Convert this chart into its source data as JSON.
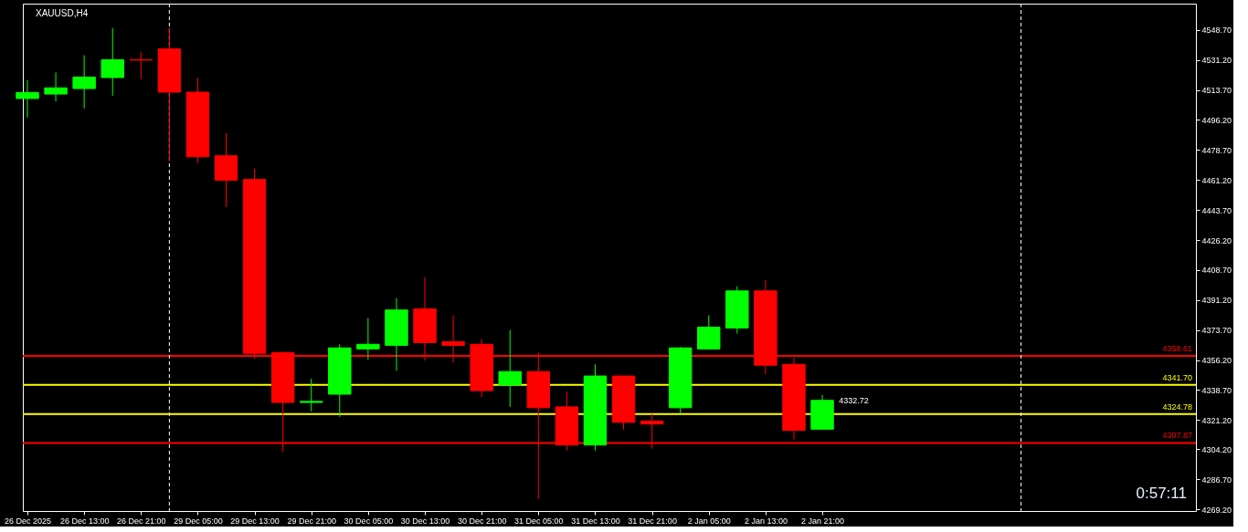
{
  "chart_data": {
    "type": "candlestick",
    "title": "XAUUSD,H4",
    "categories": [
      "26 Dec 2025",
      null,
      "26 Dec 13:00",
      null,
      "26 Dec 21:00",
      null,
      "29 Dec 05:00",
      null,
      "29 Dec 13:00",
      null,
      "29 Dec 21:00",
      null,
      "30 Dec 05:00",
      null,
      "30 Dec 13:00",
      null,
      "30 Dec 21:00",
      null,
      "31 Dec 05:00",
      null,
      "31 Dec 13:00",
      null,
      "31 Dec 21:00",
      null,
      "2 Jan 05:00",
      null,
      "2 Jan 13:00",
      null,
      "2 Jan 21:00",
      null,
      null,
      null,
      null,
      null,
      null,
      null,
      null,
      null,
      null,
      null,
      null,
      null
    ],
    "ohlc": [
      [
        4508.7,
        4519.5,
        4497.6,
        4512.2
      ],
      [
        4511.3,
        4523.9,
        4507.1,
        4514.9
      ],
      [
        4514.5,
        4533.9,
        4502.9,
        4521.2
      ],
      [
        4520.9,
        4549.8,
        4510.3,
        4531.3
      ],
      [
        4531.3,
        4536.0,
        4519.8,
        4531.1
      ],
      [
        4537.6,
        4549.8,
        4472.2,
        4512.4
      ],
      [
        4512.4,
        4520.7,
        4471.0,
        4474.7
      ],
      [
        4475.3,
        4488.5,
        4445.3,
        4461.0
      ],
      [
        4461.5,
        4467.9,
        4356.9,
        4360.1
      ],
      [
        4360.6,
        4361.1,
        4302.6,
        4331.5
      ],
      [
        4331.5,
        4345.3,
        4326.3,
        4332.1
      ],
      [
        4336.3,
        4365.4,
        4323.1,
        4363.3
      ],
      [
        4362.7,
        4380.7,
        4356.4,
        4365.4
      ],
      [
        4364.8,
        4392.3,
        4350.0,
        4385.4
      ],
      [
        4386.0,
        4404.5,
        4355.9,
        4366.4
      ],
      [
        4366.9,
        4382.3,
        4354.8,
        4364.8
      ],
      [
        4365.4,
        4368.5,
        4334.7,
        4338.4
      ],
      [
        4341.6,
        4373.8,
        4328.9,
        4349.5
      ],
      [
        4349.5,
        4360.6,
        4275.2,
        4328.4
      ],
      [
        4328.9,
        4337.9,
        4303.5,
        4306.7
      ],
      [
        4306.7,
        4353.7,
        4303.5,
        4346.9
      ],
      [
        4346.9,
        4346.9,
        4315.7,
        4319.9
      ],
      [
        4320.6,
        4324.8,
        4304.6,
        4318.9
      ],
      [
        4328.4,
        4363.8,
        4324.8,
        4363.3
      ],
      [
        4362.7,
        4382.3,
        4362.2,
        4375.4
      ],
      [
        4374.9,
        4399.2,
        4371.7,
        4396.5
      ],
      [
        4396.5,
        4402.9,
        4347.9,
        4353.2
      ],
      [
        4353.7,
        4357.4,
        4309.9,
        4315.2
      ],
      [
        4315.9,
        4335.8,
        4315.9,
        4332.72
      ],
      null,
      null,
      null,
      null,
      null,
      null,
      null,
      null,
      null,
      null,
      null,
      null,
      null
    ],
    "colors": [
      "#00ff00",
      "#00ff00",
      "#00ff00",
      "#00ff00",
      "#ff0000",
      "#ff0000",
      "#ff0000",
      "#ff0000",
      "#ff0000",
      "#ff0000",
      "#00ff00",
      "#00ff00",
      "#00ff00",
      "#00ff00",
      "#ff0000",
      "#ff0000",
      "#ff0000",
      "#00ff00",
      "#ff0000",
      "#ff0000",
      "#00ff00",
      "#ff0000",
      "#ff0000",
      "#00ff00",
      "#00ff00",
      "#00ff00",
      "#ff0000",
      "#ff0000",
      "#00ff00",
      null,
      null,
      null,
      null,
      null,
      null,
      null,
      null,
      null,
      null,
      null,
      null,
      null
    ],
    "ylim": [
      4268.2,
      4564.0
    ],
    "yticks": [
      {
        "value": 4548.7,
        "label": "4548.70"
      },
      {
        "value": 4531.2,
        "label": "4531.20"
      },
      {
        "value": 4513.7,
        "label": "4513.70"
      },
      {
        "value": 4496.2,
        "label": "4496.20"
      },
      {
        "value": 4478.7,
        "label": "4478.70"
      },
      {
        "value": 4461.2,
        "label": "4461.20"
      },
      {
        "value": 4443.7,
        "label": "4443.70"
      },
      {
        "value": 4426.2,
        "label": "4426.20"
      },
      {
        "value": 4408.7,
        "label": "4408.70"
      },
      {
        "value": 4391.2,
        "label": "4391.20"
      },
      {
        "value": 4373.7,
        "label": "4373.70"
      },
      {
        "value": 4356.2,
        "label": "4356.20"
      },
      {
        "value": 4338.7,
        "label": "4338.70"
      },
      {
        "value": 4321.2,
        "label": "4321.20"
      },
      {
        "value": 4304.2,
        "label": "4304.20"
      },
      {
        "value": 4286.7,
        "label": "4286.70"
      },
      {
        "value": 4269.2,
        "label": "4269.20"
      }
    ],
    "ref_lines": [
      {
        "axis": "y",
        "value": 4358.61,
        "label": "4358.61",
        "color": "#ff0000",
        "line_style": "solid"
      },
      {
        "axis": "y",
        "value": 4341.7,
        "label": "4341.70",
        "color": "#ffff00",
        "line_style": "solid"
      },
      {
        "axis": "y",
        "value": 4324.78,
        "label": "4324.78",
        "color": "#ffff00",
        "line_style": "solid"
      },
      {
        "axis": "y",
        "value": 4307.87,
        "label": "4307.87",
        "color": "#ff0000",
        "line_style": "solid"
      }
    ],
    "annotations": [
      {
        "text": "4332.72",
        "x": "2 Jan 21:00",
        "y": 4332.72
      },
      "0:57:11"
    ]
  }
}
